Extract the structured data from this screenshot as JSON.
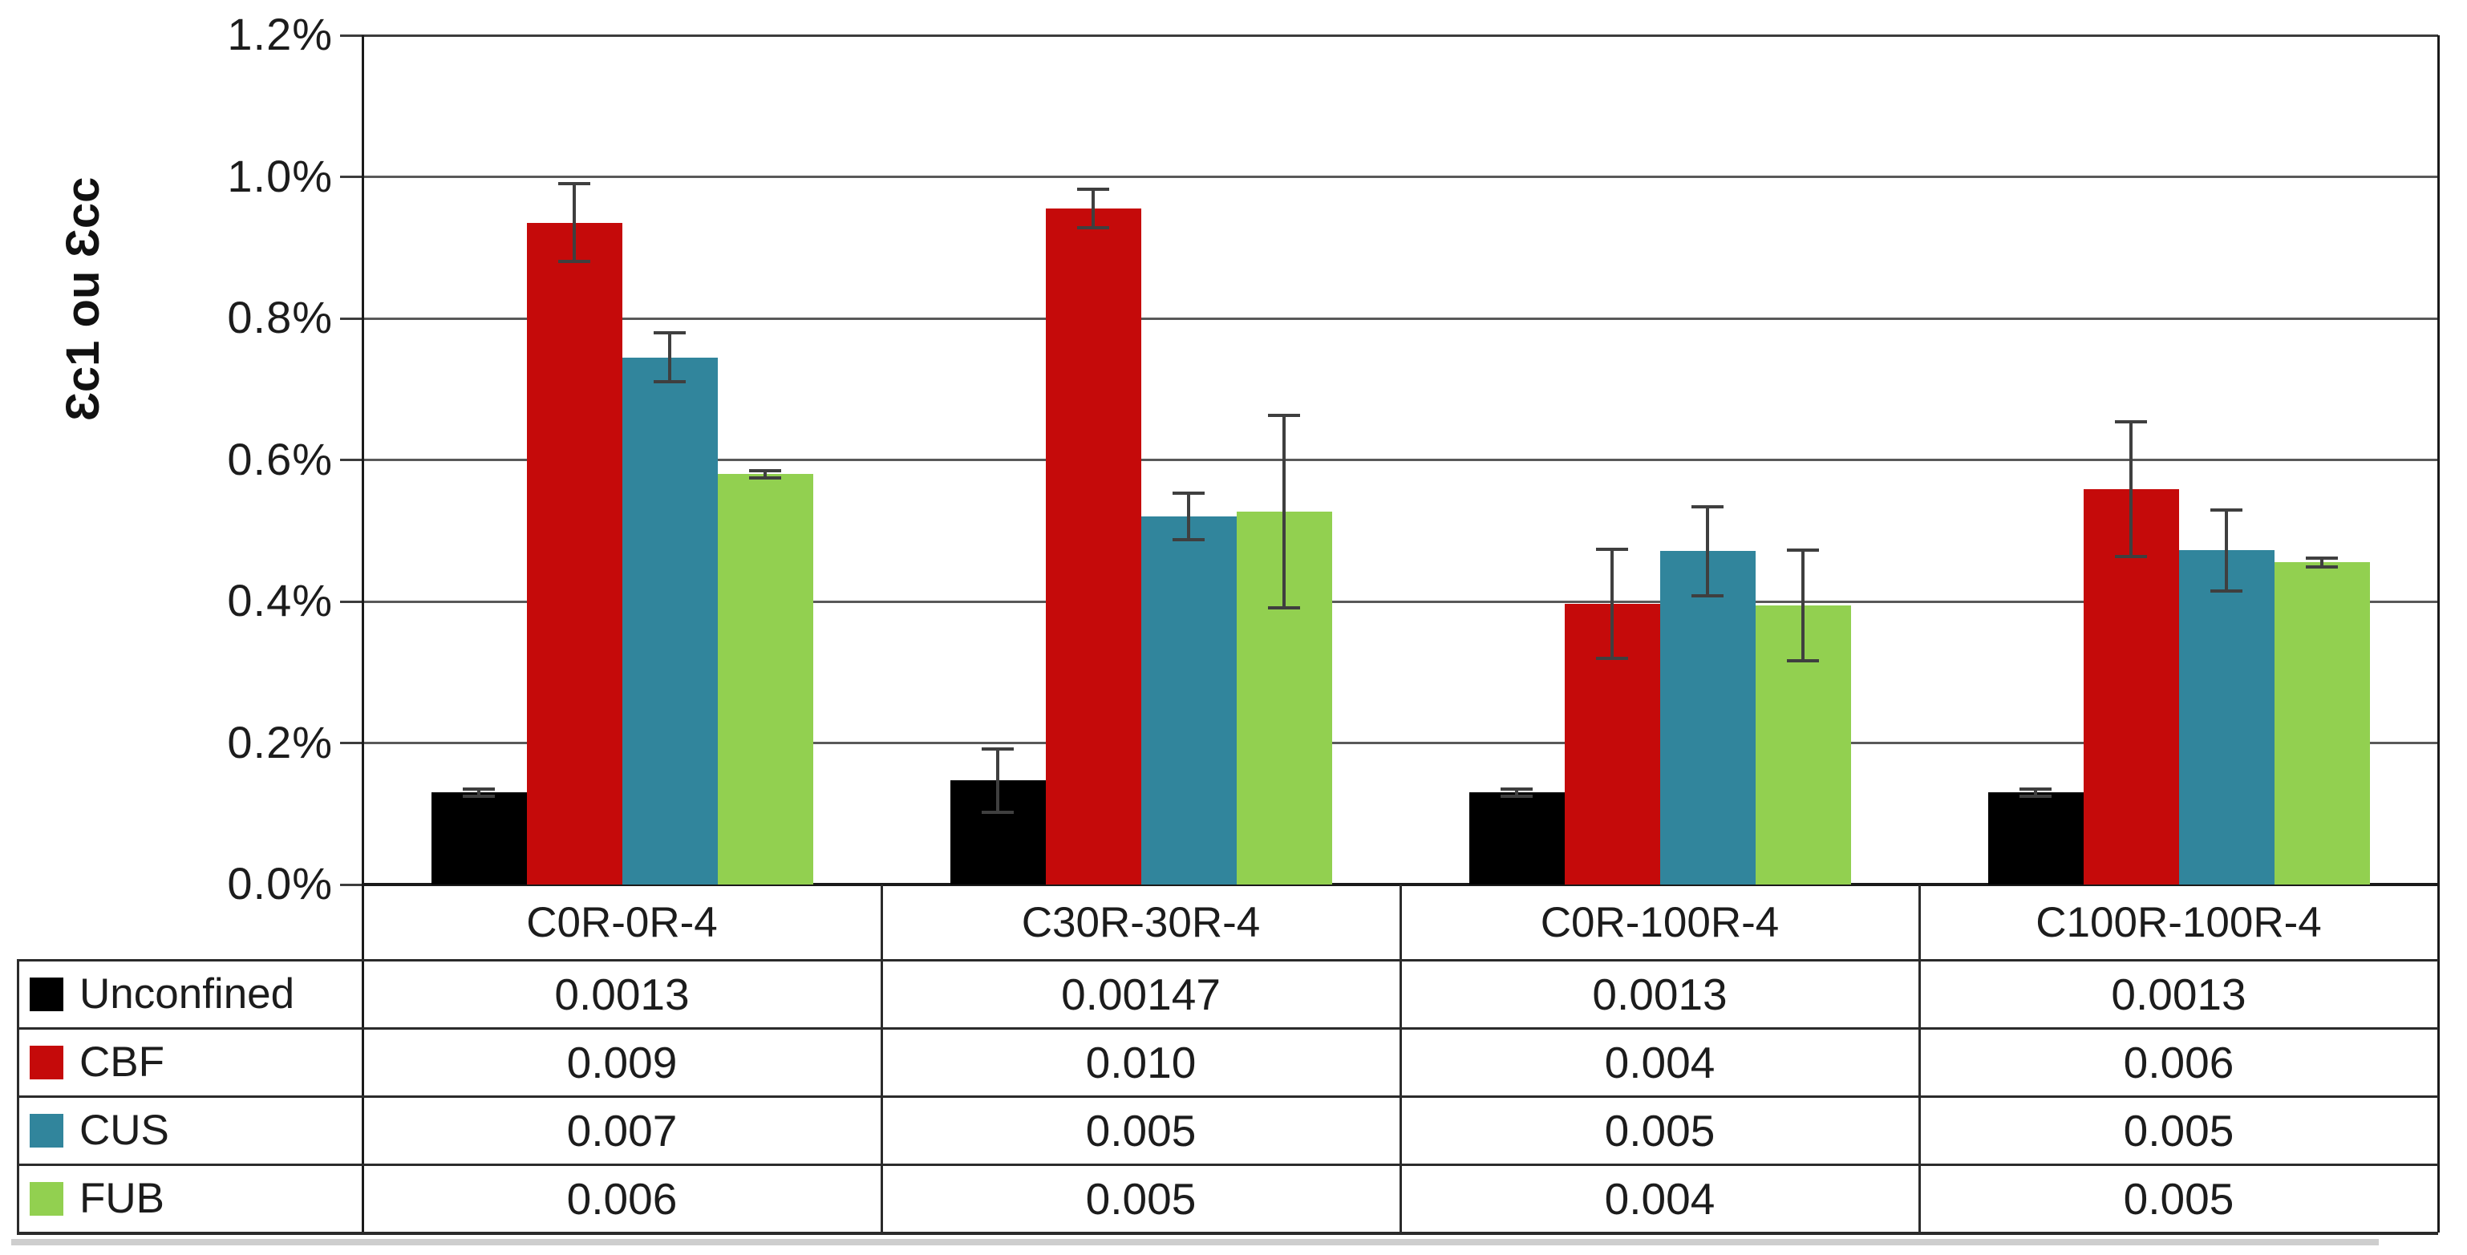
{
  "chart_data": {
    "type": "bar",
    "title": "",
    "ylabel": "Ɛc1 ou Ɛcc",
    "xlabel": "",
    "y_ticks": [
      "1.2%",
      "1.0%",
      "0.8%",
      "0.6%",
      "0.4%",
      "0.2%",
      "0.0%"
    ],
    "ylim_pct": [
      0,
      1.2
    ],
    "grid": true,
    "legend_position": "table-left",
    "categories": [
      "C0R-0R-4",
      "C30R-30R-4",
      "C0R-100R-4",
      "C100R-100R-4"
    ],
    "series": [
      {
        "name": "Unconfined",
        "color": "#000000",
        "values_pct": [
          0.13,
          0.147,
          0.13,
          0.13
        ],
        "errors_pct": [
          0.005,
          0.045,
          0.005,
          0.005
        ],
        "table_values": [
          "0.0013",
          "0.00147",
          "0.0013",
          "0.0013"
        ]
      },
      {
        "name": "CBF",
        "color": "#C50A0A",
        "values_pct": [
          0.935,
          0.955,
          0.397,
          0.559
        ],
        "errors_pct": [
          0.055,
          0.027,
          0.077,
          0.095
        ],
        "table_values": [
          "0.009",
          "0.010",
          "0.004",
          "0.006"
        ]
      },
      {
        "name": "CUS",
        "color": "#31859C",
        "values_pct": [
          0.745,
          0.52,
          0.471,
          0.472
        ],
        "errors_pct": [
          0.035,
          0.033,
          0.063,
          0.057
        ],
        "table_values": [
          "0.007",
          "0.005",
          "0.005",
          "0.005"
        ]
      },
      {
        "name": "FUB",
        "color": "#92D050",
        "values_pct": [
          0.58,
          0.527,
          0.394,
          0.455
        ],
        "errors_pct": [
          0.005,
          0.136,
          0.078,
          0.006
        ],
        "table_values": [
          "0.006",
          "0.005",
          "0.004",
          "0.005"
        ]
      }
    ],
    "error_bar_color": "#3f3f3f",
    "grid_color": "#595959"
  }
}
